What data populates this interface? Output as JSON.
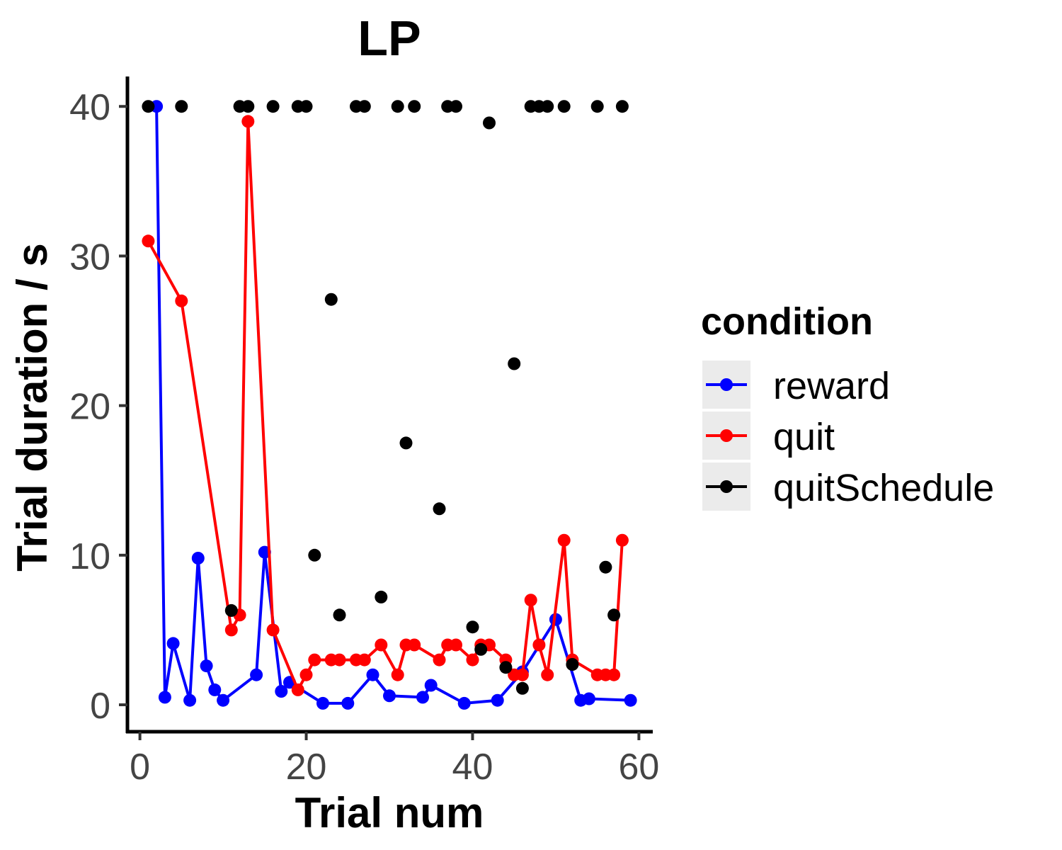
{
  "chart_data": {
    "type": "line",
    "title": "LP",
    "xlabel": "Trial num",
    "ylabel": "Trial duration / s",
    "xlim": [
      -1.5,
      61.5
    ],
    "ylim": [
      -1.8,
      42
    ],
    "xticks": [
      0,
      20,
      40,
      60
    ],
    "yticks": [
      0,
      10,
      20,
      30,
      40
    ],
    "xtick_labels": [
      "0",
      "20",
      "40",
      "60"
    ],
    "ytick_labels": [
      "0",
      "10",
      "20",
      "30",
      "40"
    ],
    "grid": false,
    "legend": {
      "title": "condition",
      "position": "right"
    },
    "series": [
      {
        "name": "reward",
        "color": "#0000ff",
        "style": "line+points",
        "points": [
          [
            2,
            40
          ],
          [
            3,
            0.5
          ],
          [
            4,
            4.1
          ],
          [
            6,
            0.3
          ],
          [
            7,
            9.8
          ],
          [
            8,
            2.6
          ],
          [
            9,
            1.0
          ],
          [
            10,
            0.3
          ],
          [
            14,
            2.0
          ],
          [
            15,
            10.2
          ],
          [
            17,
            0.9
          ],
          [
            18,
            1.5
          ],
          [
            22,
            0.1
          ],
          [
            25,
            0.1
          ],
          [
            28,
            2.0
          ],
          [
            30,
            0.6
          ],
          [
            34,
            0.5
          ],
          [
            35,
            1.3
          ],
          [
            39,
            0.1
          ],
          [
            43,
            0.3
          ],
          [
            46,
            2.2
          ],
          [
            50,
            5.7
          ],
          [
            53,
            0.3
          ],
          [
            54,
            0.4
          ],
          [
            59,
            0.3
          ]
        ]
      },
      {
        "name": "quit",
        "color": "#ff0000",
        "style": "line+points",
        "points": [
          [
            1,
            31
          ],
          [
            5,
            27
          ],
          [
            11,
            5
          ],
          [
            12,
            6
          ],
          [
            13,
            39
          ],
          [
            16,
            5
          ],
          [
            19,
            1
          ],
          [
            20,
            2
          ],
          [
            21,
            3
          ],
          [
            23,
            3
          ],
          [
            24,
            3
          ],
          [
            26,
            3
          ],
          [
            27,
            3
          ],
          [
            29,
            4
          ],
          [
            31,
            2
          ],
          [
            32,
            4
          ],
          [
            33,
            4
          ],
          [
            36,
            3
          ],
          [
            37,
            4
          ],
          [
            38,
            4
          ],
          [
            40,
            3
          ],
          [
            41,
            4
          ],
          [
            42,
            4
          ],
          [
            44,
            3
          ],
          [
            45,
            2
          ],
          [
            46,
            2
          ],
          [
            47,
            7
          ],
          [
            48,
            4
          ],
          [
            49,
            2
          ],
          [
            51,
            11
          ],
          [
            52,
            3
          ],
          [
            55,
            2
          ],
          [
            56,
            2
          ],
          [
            57,
            2
          ],
          [
            58,
            11
          ]
        ]
      },
      {
        "name": "quitSchedule",
        "color": "#000000",
        "style": "points",
        "points": [
          [
            1,
            40
          ],
          [
            5,
            40
          ],
          [
            11,
            6.3
          ],
          [
            12,
            40
          ],
          [
            13,
            40
          ],
          [
            16,
            40
          ],
          [
            19,
            40
          ],
          [
            20,
            40
          ],
          [
            21,
            10
          ],
          [
            23,
            27.1
          ],
          [
            24,
            6.0
          ],
          [
            26,
            40
          ],
          [
            27,
            40
          ],
          [
            29,
            7.2
          ],
          [
            31,
            40
          ],
          [
            32,
            17.5
          ],
          [
            33,
            40
          ],
          [
            36,
            13.1
          ],
          [
            37,
            40
          ],
          [
            38,
            40
          ],
          [
            40,
            5.2
          ],
          [
            41,
            3.7
          ],
          [
            42,
            38.9
          ],
          [
            44,
            2.5
          ],
          [
            45,
            22.8
          ],
          [
            46,
            1.1
          ],
          [
            47,
            40
          ],
          [
            48,
            40
          ],
          [
            49,
            40
          ],
          [
            51,
            40
          ],
          [
            52,
            2.7
          ],
          [
            55,
            40
          ],
          [
            56,
            9.2
          ],
          [
            57,
            6.0
          ],
          [
            58,
            40
          ]
        ]
      }
    ]
  }
}
